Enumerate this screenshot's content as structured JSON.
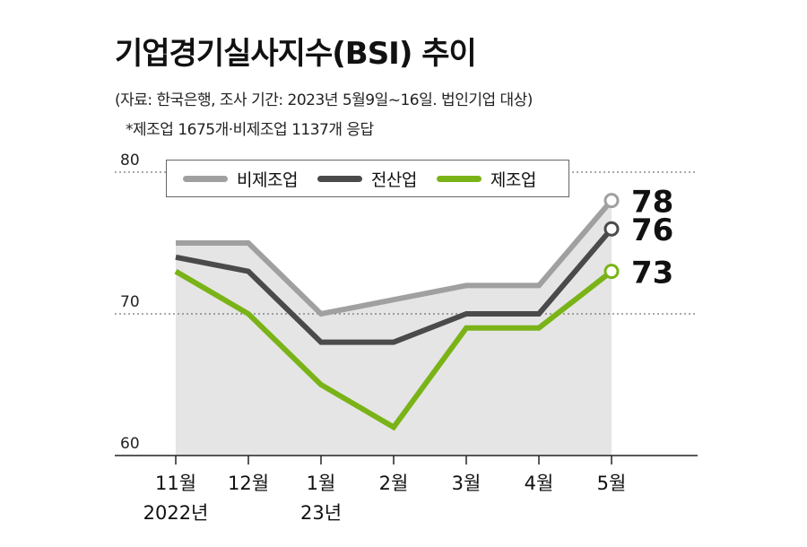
{
  "title": "기업경기실사지수(BSI) 추이",
  "subtitle": "(자료: 한국은행, 조사 기간: 2023년 5월9일~16일. 법인기업 대상)",
  "note": "*제조업 1675개·비제조업 1137개 응답",
  "chart_data": {
    "type": "line",
    "categories": [
      "11월\n2022년",
      "12월",
      "1월\n23년",
      "2월",
      "3월",
      "4월",
      "5월"
    ],
    "series": [
      {
        "name": "비제조업",
        "color": "#a0a0a0",
        "values": [
          75,
          75,
          70,
          71,
          72,
          72,
          78
        ],
        "end_label": "78"
      },
      {
        "name": "전산업",
        "color": "#4a4a4a",
        "values": [
          74,
          73,
          68,
          68,
          70,
          70,
          76
        ],
        "end_label": "76"
      },
      {
        "name": "제조업",
        "color": "#7ab317",
        "values": [
          73,
          70,
          65,
          62,
          69,
          69,
          73
        ],
        "end_label": "73"
      }
    ],
    "ylim": [
      60,
      80
    ],
    "yticks": [
      60,
      70,
      80
    ],
    "grid": "dotted horizontal",
    "legend_position": "top",
    "fill_color": "#e5e5e5"
  }
}
